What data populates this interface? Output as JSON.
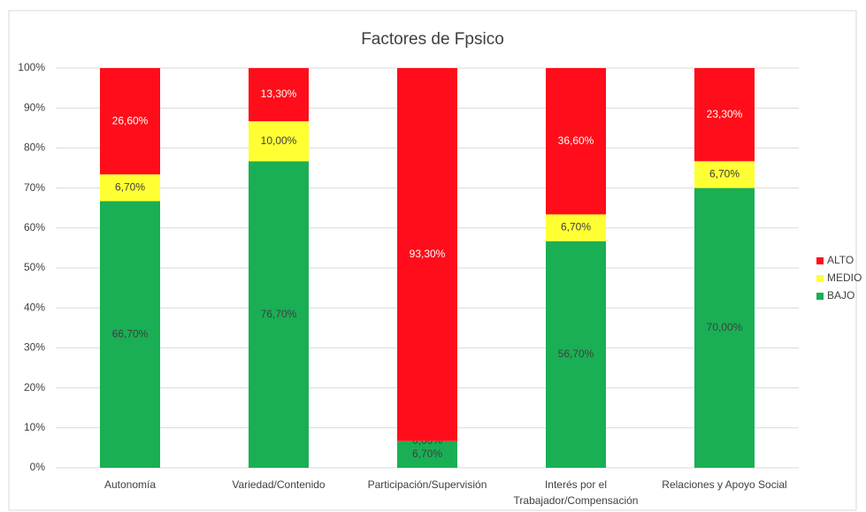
{
  "chart_data": {
    "type": "stacked_bar",
    "title": "Factores de Fpsico",
    "categories": [
      "Autonomía",
      "Variedad/Contenido",
      "Participación/Supervisión",
      "Interés por el Trabajador/Compensación",
      "Relaciones y Apoyo Social"
    ],
    "series": [
      {
        "name": "BAJO",
        "color": "#1aaf54",
        "values": [
          66.7,
          76.7,
          6.7,
          56.7,
          70.0
        ],
        "value_labels": [
          "66,70%",
          "76,70%",
          "6,70%",
          "56,70%",
          "70,00%"
        ]
      },
      {
        "name": "MEDIO",
        "color": "#ffff33",
        "values": [
          6.7,
          10.0,
          0.0,
          6.7,
          6.7
        ],
        "value_labels": [
          "6,70%",
          "10,00%",
          "0,00%",
          "6,70%",
          "6,70%"
        ]
      },
      {
        "name": "ALTO",
        "color": "#ff0d1a",
        "values": [
          26.6,
          13.3,
          93.3,
          36.6,
          23.3
        ],
        "value_labels": [
          "26,60%",
          "13,30%",
          "93,30%",
          "36,60%",
          "23,30%"
        ]
      }
    ],
    "ylim": [
      0,
      100
    ],
    "yticks": [
      {
        "value": 0,
        "label": "0%"
      },
      {
        "value": 10,
        "label": "10%"
      },
      {
        "value": 20,
        "label": "20%"
      },
      {
        "value": 30,
        "label": "30%"
      },
      {
        "value": 40,
        "label": "40%"
      },
      {
        "value": 50,
        "label": "50%"
      },
      {
        "value": 60,
        "label": "60%"
      },
      {
        "value": 70,
        "label": "70%"
      },
      {
        "value": 80,
        "label": "80%"
      },
      {
        "value": 90,
        "label": "90%"
      },
      {
        "value": 100,
        "label": "100%"
      }
    ],
    "grid": true,
    "legend": "right"
  }
}
